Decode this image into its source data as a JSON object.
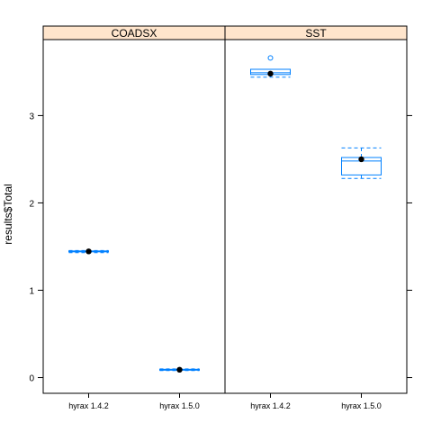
{
  "chart_data": {
    "type": "box",
    "ylabel": "results$Total",
    "ylim": [
      -0.18,
      3.87
    ],
    "y_ticks": [
      0,
      1,
      2,
      3
    ],
    "categories": [
      "hyrax 1.4.2",
      "hyrax 1.5.0"
    ],
    "panels": [
      {
        "name": "COADSX",
        "boxes": [
          {
            "category": "hyrax 1.4.2",
            "min": 1.43,
            "q1": 1.44,
            "median": 1.445,
            "q3": 1.45,
            "max": 1.455,
            "mean": 1.445,
            "outliers": []
          },
          {
            "category": "hyrax 1.5.0",
            "min": 0.08,
            "q1": 0.085,
            "median": 0.09,
            "q3": 0.095,
            "max": 0.1,
            "mean": 0.09,
            "outliers": []
          }
        ]
      },
      {
        "name": "SST",
        "boxes": [
          {
            "category": "hyrax 1.4.2",
            "min": 3.44,
            "q1": 3.47,
            "median": 3.49,
            "q3": 3.53,
            "max": 3.53,
            "mean": 3.48,
            "outliers": [
              3.66
            ]
          },
          {
            "category": "hyrax 1.5.0",
            "min": 2.28,
            "q1": 2.32,
            "median": 2.48,
            "q3": 2.52,
            "max": 2.63,
            "mean": 2.5,
            "outliers": []
          }
        ]
      }
    ],
    "colors": {
      "strip_fill": "#ffe5cc",
      "box_stroke": "#0080ff",
      "mean_dot": "#000000",
      "frame": "#000000"
    }
  }
}
